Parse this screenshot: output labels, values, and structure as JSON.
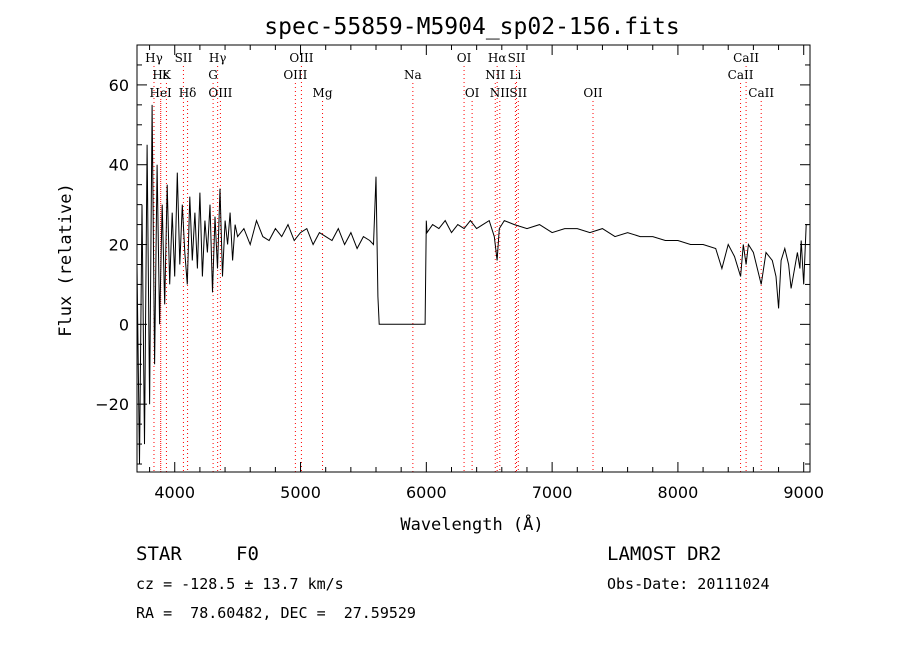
{
  "chart_data": {
    "type": "line",
    "title": "spec-55859-M5904_sp02-156.fits",
    "xlabel": "Wavelength (Å)",
    "ylabel": "Flux (relative)",
    "xlim": [
      3700,
      9050
    ],
    "ylim": [
      -37,
      70
    ],
    "xticks": [
      4000,
      5000,
      6000,
      7000,
      8000,
      9000
    ],
    "yticks": [
      -20,
      0,
      20,
      40,
      60
    ],
    "grid": false,
    "line_color": "#000000",
    "marker_color": "#ff0000",
    "series": [
      {
        "x": [
          3700,
          3720,
          3740,
          3760,
          3780,
          3800,
          3820,
          3840,
          3860,
          3880,
          3900,
          3920,
          3940,
          3960,
          3980,
          4000,
          4020,
          4040,
          4060,
          4080,
          4100,
          4120,
          4140,
          4160,
          4180,
          4200,
          4220,
          4240,
          4260,
          4280,
          4300,
          4320,
          4340,
          4360,
          4380,
          4400,
          4420,
          4440,
          4460,
          4480,
          4500,
          4550,
          4600,
          4650,
          4700,
          4750,
          4800,
          4850,
          4900,
          4950,
          5000,
          5050,
          5100,
          5150,
          5200,
          5250,
          5300,
          5350,
          5400,
          5450,
          5500,
          5550,
          5580,
          5600,
          5615,
          5625,
          5640,
          5700,
          5800,
          5900,
          5990,
          6000,
          6005,
          6050,
          6100,
          6150,
          6200,
          6250,
          6300,
          6350,
          6400,
          6450,
          6500,
          6540,
          6563,
          6580,
          6620,
          6700,
          6800,
          6900,
          7000,
          7100,
          7200,
          7300,
          7400,
          7500,
          7600,
          7700,
          7800,
          7900,
          8000,
          8100,
          8200,
          8300,
          8350,
          8400,
          8450,
          8498,
          8520,
          8542,
          8560,
          8600,
          8662,
          8700,
          8750,
          8780,
          8800,
          8820,
          8850,
          8880,
          8900,
          8950,
          8970,
          8980,
          9000,
          9020,
          9040
        ],
        "y": [
          15,
          -35,
          30,
          -30,
          45,
          -20,
          55,
          -10,
          40,
          0,
          30,
          5,
          35,
          10,
          28,
          12,
          38,
          15,
          30,
          18,
          10,
          32,
          16,
          28,
          14,
          33,
          12,
          26,
          18,
          30,
          8,
          27,
          14,
          34,
          12,
          26,
          20,
          28,
          16,
          25,
          22,
          24,
          20,
          26,
          22,
          21,
          24,
          22,
          25,
          21,
          23,
          24,
          20,
          23,
          22,
          21,
          24,
          20,
          23,
          19,
          22,
          21,
          20,
          37,
          7,
          0,
          0,
          0,
          0,
          0,
          0,
          26,
          23,
          25,
          24,
          26,
          23,
          25,
          24,
          26,
          24,
          25,
          26,
          22,
          16,
          24,
          26,
          25,
          24,
          25,
          23,
          24,
          24,
          23,
          24,
          22,
          23,
          22,
          22,
          21,
          21,
          20,
          20,
          19,
          14,
          20,
          17,
          12,
          20,
          15,
          20,
          18,
          10,
          18,
          16,
          12,
          4,
          16,
          19,
          15,
          9,
          18,
          14,
          21,
          10,
          25,
          25
        ]
      }
    ],
    "lines": [
      {
        "name": "Hγ",
        "x": 3835,
        "row": 1
      },
      {
        "name": "Hε",
        "x": 3889,
        "row": 2
      },
      {
        "name": "HeI",
        "x": 3888,
        "row": 3
      },
      {
        "name": "K",
        "x": 3934,
        "row": 2
      },
      {
        "name": "SII",
        "x": 4069,
        "row": 1
      },
      {
        "name": "Hδ",
        "x": 4102,
        "row": 3
      },
      {
        "name": "Hγ",
        "x": 4341,
        "row": 1
      },
      {
        "name": "G",
        "x": 4305,
        "row": 2
      },
      {
        "name": "OIII",
        "x": 4363,
        "row": 3
      },
      {
        "name": "OIII",
        "x": 5007,
        "row": 1
      },
      {
        "name": "OIII",
        "x": 4959,
        "row": 2
      },
      {
        "name": "Mg",
        "x": 5175,
        "row": 3
      },
      {
        "name": "Na",
        "x": 5893,
        "row": 2
      },
      {
        "name": "OI",
        "x": 6300,
        "row": 1
      },
      {
        "name": "OI",
        "x": 6364,
        "row": 3
      },
      {
        "name": "Hα",
        "x": 6563,
        "row": 1
      },
      {
        "name": "NII",
        "x": 6548,
        "row": 2
      },
      {
        "name": "NII",
        "x": 6584,
        "row": 3
      },
      {
        "name": "SII",
        "x": 6717,
        "row": 1
      },
      {
        "name": "Li",
        "x": 6708,
        "row": 2
      },
      {
        "name": "SII",
        "x": 6731,
        "row": 3
      },
      {
        "name": "OII",
        "x": 7325,
        "row": 3
      },
      {
        "name": "CaII",
        "x": 8542,
        "row": 1
      },
      {
        "name": "CaII",
        "x": 8498,
        "row": 2
      },
      {
        "name": "CaII",
        "x": 8662,
        "row": 3
      }
    ]
  },
  "info": {
    "object_class": "STAR",
    "subclass": "F0",
    "survey": "LAMOST DR2",
    "redshift": "cz = -128.5 ± 13.7 km/s",
    "obs_date": "Obs-Date: 20111024",
    "coords": "RA =  78.60482, DEC =  27.59529"
  }
}
